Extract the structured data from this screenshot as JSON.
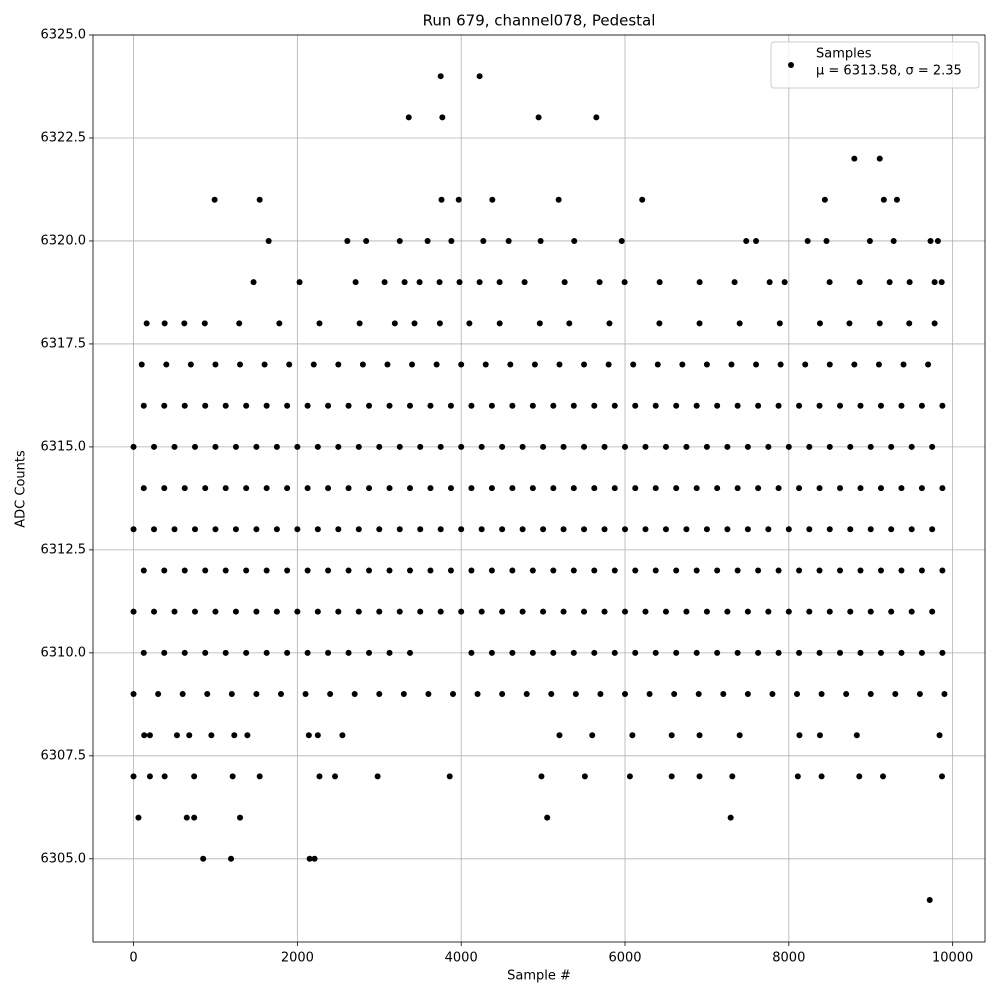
{
  "chart_data": {
    "type": "scatter",
    "title": "Run 679, channel078, Pedestal",
    "xlabel": "Sample #",
    "ylabel": "ADC Counts",
    "xlim": [
      -495,
      10395
    ],
    "ylim": [
      6302.98,
      6325
    ],
    "xticks": [
      0,
      2000,
      4000,
      6000,
      8000,
      10000
    ],
    "yticks": [
      {
        "value": 6305,
        "label": "6305.0"
      },
      6307.5,
      {
        "value": 6310,
        "label": "6310.0"
      },
      6312.5,
      {
        "value": 6315,
        "label": "6315.0"
      },
      6317.5,
      {
        "value": 6320,
        "label": "6320.0"
      },
      6322.5,
      {
        "value": 6325,
        "label": "6325.0"
      }
    ],
    "grid": true,
    "legend": "upper right",
    "legend_note": "μ = 6313.58, σ = 2.35",
    "x": [
      3750,
      4225,
      3360,
      3770,
      4945,
      5650,
      8800,
      9110,
      990,
      1540,
      3760,
      3970,
      4380,
      5190,
      6210,
      8440,
      9160,
      9320,
      1650,
      2610,
      2840,
      3250,
      3590,
      3880,
      4270,
      4580,
      4970,
      5380,
      5960,
      7480,
      7600,
      8230,
      8460,
      8990,
      9280,
      9730,
      9820,
      1465,
      2027,
      2711,
      3065,
      3309,
      3492,
      3736,
      3980,
      4225,
      4469,
      4774,
      5263,
      5690,
      5995,
      6423,
      6911,
      7338,
      7766,
      7949,
      8498,
      8865,
      9231,
      9475,
      9780,
      9866,
      160,
      380,
      620,
      870,
      1290,
      1780,
      2270,
      2760,
      3190,
      3430,
      3740,
      4100,
      4470,
      4960,
      5320,
      5810,
      6420,
      6910,
      7400,
      7890,
      8380,
      8740,
      9110,
      9470,
      9780,
      100,
      400,
      700,
      1000,
      1300,
      1600,
      1900,
      2200,
      2500,
      2800,
      3100,
      3400,
      3700,
      4000,
      4300,
      4600,
      4900,
      5200,
      5500,
      5800,
      6100,
      6400,
      6700,
      7000,
      7300,
      7600,
      7900,
      8200,
      8500,
      8800,
      9100,
      9400,
      9700,
      125,
      375,
      625,
      875,
      1125,
      1375,
      1625,
      1875,
      2125,
      2375,
      2625,
      2875,
      3125,
      3375,
      3625,
      3875,
      4125,
      4375,
      4625,
      4875,
      5125,
      5375,
      5625,
      5875,
      6125,
      6375,
      6625,
      6875,
      7125,
      7375,
      7625,
      7875,
      8125,
      8375,
      8625,
      8875,
      9125,
      9375,
      9625,
      9875,
      0,
      250,
      500,
      750,
      1000,
      1250,
      1500,
      1750,
      2000,
      2250,
      2500,
      2750,
      3000,
      3250,
      3500,
      3750,
      4000,
      4250,
      4500,
      4750,
      5000,
      5250,
      5500,
      5750,
      6000,
      6250,
      6500,
      6750,
      7000,
      7250,
      7500,
      7750,
      8000,
      8250,
      8500,
      8750,
      9000,
      9250,
      9500,
      9750,
      125,
      375,
      625,
      875,
      1125,
      1375,
      1625,
      1875,
      2125,
      2375,
      2625,
      2875,
      3125,
      3375,
      3625,
      3875,
      4125,
      4375,
      4625,
      4875,
      5125,
      5375,
      5625,
      5875,
      6125,
      6375,
      6625,
      6875,
      7125,
      7375,
      7625,
      7875,
      8125,
      8375,
      8625,
      8875,
      9125,
      9375,
      9625,
      9875,
      0,
      250,
      500,
      750,
      1000,
      1250,
      1500,
      1750,
      2000,
      2250,
      2500,
      2750,
      3000,
      3250,
      3500,
      3750,
      4000,
      4250,
      4500,
      4750,
      5000,
      5250,
      5500,
      5750,
      6000,
      6250,
      6500,
      6750,
      7000,
      7250,
      7500,
      7750,
      8000,
      8250,
      8500,
      8750,
      9000,
      9250,
      9500,
      9750,
      125,
      375,
      625,
      875,
      1125,
      1375,
      1625,
      1875,
      2125,
      2375,
      2625,
      2875,
      3125,
      3375,
      3625,
      3875,
      4125,
      4375,
      4625,
      4875,
      5125,
      5375,
      5625,
      5875,
      6125,
      6375,
      6625,
      6875,
      7125,
      7375,
      7625,
      7875,
      8125,
      8375,
      8625,
      8875,
      9125,
      9375,
      9625,
      9875,
      0,
      250,
      500,
      750,
      1000,
      1250,
      1500,
      1750,
      2000,
      2250,
      2500,
      2750,
      3000,
      3250,
      3500,
      3750,
      4000,
      4250,
      4500,
      4750,
      5000,
      5250,
      5500,
      5750,
      6000,
      6250,
      6500,
      6750,
      7000,
      7250,
      7500,
      7750,
      8000,
      8250,
      8500,
      8750,
      9000,
      9250,
      9500,
      9750,
      125,
      375,
      625,
      875,
      1125,
      1375,
      1625,
      1875,
      2125,
      2375,
      2625,
      2875,
      3125,
      3375,
      4125,
      4375,
      4625,
      4875,
      5125,
      5375,
      5625,
      5875,
      6125,
      6375,
      6625,
      6875,
      7125,
      7375,
      7625,
      7875,
      8125,
      8375,
      8625,
      8875,
      9125,
      9375,
      9625,
      9875,
      0,
      300,
      600,
      900,
      1200,
      1500,
      1800,
      2100,
      2400,
      2700,
      3000,
      3300,
      3600,
      3900,
      4200,
      4500,
      4800,
      5100,
      5400,
      5700,
      6000,
      6300,
      6600,
      6900,
      7200,
      7500,
      7800,
      8100,
      8400,
      8700,
      9000,
      9300,
      9600,
      9900,
      130,
      200,
      530,
      680,
      950,
      1230,
      1390,
      2140,
      2250,
      2550,
      5200,
      5600,
      6090,
      6570,
      6910,
      7400,
      8130,
      8380,
      8830,
      9840,
      0,
      200,
      380,
      740,
      1210,
      1540,
      2270,
      2460,
      2980,
      3860,
      4980,
      5510,
      6060,
      6570,
      6910,
      7310,
      8110,
      8400,
      8860,
      9150,
      9870,
      60,
      650,
      740,
      1300,
      5050,
      7290,
      850,
      1190,
      2150,
      2210,
      9720
    ],
    "series": [
      {
        "name": "Samples",
        "color": "#000000",
        "values": [
          6324,
          6324,
          6323,
          6323,
          6323,
          6323,
          6322,
          6322,
          6321,
          6321,
          6321,
          6321,
          6321,
          6321,
          6321,
          6321,
          6321,
          6321,
          6320,
          6320,
          6320,
          6320,
          6320,
          6320,
          6320,
          6320,
          6320,
          6320,
          6320,
          6320,
          6320,
          6320,
          6320,
          6320,
          6320,
          6320,
          6320,
          6319,
          6319,
          6319,
          6319,
          6319,
          6319,
          6319,
          6319,
          6319,
          6319,
          6319,
          6319,
          6319,
          6319,
          6319,
          6319,
          6319,
          6319,
          6319,
          6319,
          6319,
          6319,
          6319,
          6319,
          6319,
          6318,
          6318,
          6318,
          6318,
          6318,
          6318,
          6318,
          6318,
          6318,
          6318,
          6318,
          6318,
          6318,
          6318,
          6318,
          6318,
          6318,
          6318,
          6318,
          6318,
          6318,
          6318,
          6318,
          6318,
          6318,
          6317,
          6317,
          6317,
          6317,
          6317,
          6317,
          6317,
          6317,
          6317,
          6317,
          6317,
          6317,
          6317,
          6317,
          6317,
          6317,
          6317,
          6317,
          6317,
          6317,
          6317,
          6317,
          6317,
          6317,
          6317,
          6317,
          6317,
          6317,
          6317,
          6317,
          6317,
          6317,
          6317,
          6316,
          6316,
          6316,
          6316,
          6316,
          6316,
          6316,
          6316,
          6316,
          6316,
          6316,
          6316,
          6316,
          6316,
          6316,
          6316,
          6316,
          6316,
          6316,
          6316,
          6316,
          6316,
          6316,
          6316,
          6316,
          6316,
          6316,
          6316,
          6316,
          6316,
          6316,
          6316,
          6316,
          6316,
          6316,
          6316,
          6316,
          6316,
          6316,
          6316,
          6315,
          6315,
          6315,
          6315,
          6315,
          6315,
          6315,
          6315,
          6315,
          6315,
          6315,
          6315,
          6315,
          6315,
          6315,
          6315,
          6315,
          6315,
          6315,
          6315,
          6315,
          6315,
          6315,
          6315,
          6315,
          6315,
          6315,
          6315,
          6315,
          6315,
          6315,
          6315,
          6315,
          6315,
          6315,
          6315,
          6315,
          6315,
          6315,
          6315,
          6314,
          6314,
          6314,
          6314,
          6314,
          6314,
          6314,
          6314,
          6314,
          6314,
          6314,
          6314,
          6314,
          6314,
          6314,
          6314,
          6314,
          6314,
          6314,
          6314,
          6314,
          6314,
          6314,
          6314,
          6314,
          6314,
          6314,
          6314,
          6314,
          6314,
          6314,
          6314,
          6314,
          6314,
          6314,
          6314,
          6314,
          6314,
          6314,
          6314,
          6313,
          6313,
          6313,
          6313,
          6313,
          6313,
          6313,
          6313,
          6313,
          6313,
          6313,
          6313,
          6313,
          6313,
          6313,
          6313,
          6313,
          6313,
          6313,
          6313,
          6313,
          6313,
          6313,
          6313,
          6313,
          6313,
          6313,
          6313,
          6313,
          6313,
          6313,
          6313,
          6313,
          6313,
          6313,
          6313,
          6313,
          6313,
          6313,
          6313,
          6312,
          6312,
          6312,
          6312,
          6312,
          6312,
          6312,
          6312,
          6312,
          6312,
          6312,
          6312,
          6312,
          6312,
          6312,
          6312,
          6312,
          6312,
          6312,
          6312,
          6312,
          6312,
          6312,
          6312,
          6312,
          6312,
          6312,
          6312,
          6312,
          6312,
          6312,
          6312,
          6312,
          6312,
          6312,
          6312,
          6312,
          6312,
          6312,
          6312,
          6311,
          6311,
          6311,
          6311,
          6311,
          6311,
          6311,
          6311,
          6311,
          6311,
          6311,
          6311,
          6311,
          6311,
          6311,
          6311,
          6311,
          6311,
          6311,
          6311,
          6311,
          6311,
          6311,
          6311,
          6311,
          6311,
          6311,
          6311,
          6311,
          6311,
          6311,
          6311,
          6311,
          6311,
          6311,
          6311,
          6311,
          6311,
          6311,
          6311,
          6310,
          6310,
          6310,
          6310,
          6310,
          6310,
          6310,
          6310,
          6310,
          6310,
          6310,
          6310,
          6310,
          6310,
          6310,
          6310,
          6310,
          6310,
          6310,
          6310,
          6310,
          6310,
          6310,
          6310,
          6310,
          6310,
          6310,
          6310,
          6310,
          6310,
          6310,
          6310,
          6310,
          6310,
          6310,
          6310,
          6310,
          6310,
          6309,
          6309,
          6309,
          6309,
          6309,
          6309,
          6309,
          6309,
          6309,
          6309,
          6309,
          6309,
          6309,
          6309,
          6309,
          6309,
          6309,
          6309,
          6309,
          6309,
          6309,
          6309,
          6309,
          6309,
          6309,
          6309,
          6309,
          6309,
          6309,
          6309,
          6309,
          6309,
          6309,
          6309,
          6308,
          6308,
          6308,
          6308,
          6308,
          6308,
          6308,
          6308,
          6308,
          6308,
          6308,
          6308,
          6308,
          6308,
          6308,
          6308,
          6308,
          6308,
          6308,
          6308,
          6307,
          6307,
          6307,
          6307,
          6307,
          6307,
          6307,
          6307,
          6307,
          6307,
          6307,
          6307,
          6307,
          6307,
          6307,
          6307,
          6307,
          6307,
          6307,
          6307,
          6307,
          6306,
          6306,
          6306,
          6306,
          6306,
          6306,
          6305,
          6305,
          6305,
          6305,
          6304
        ]
      }
    ]
  }
}
